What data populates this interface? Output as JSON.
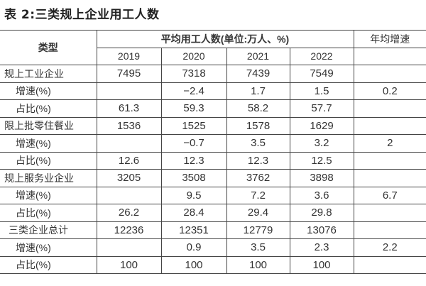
{
  "title": "表 2:三类规上企业用工人数",
  "header": {
    "type": "类型",
    "group": "平均用工人数(单位:万人、%)",
    "avg_growth": "年均增速",
    "years": [
      "2019",
      "2020",
      "2021",
      "2022"
    ]
  },
  "rows": [
    {
      "label": "规上工业企业",
      "style": "name",
      "values": [
        "7495",
        "7318",
        "7439",
        "7549",
        ""
      ]
    },
    {
      "label": "增速(%)",
      "style": "sub",
      "values": [
        "",
        "−2.4",
        "1.7",
        "1.5",
        "0.2"
      ]
    },
    {
      "label": "占比(%)",
      "style": "sub",
      "values": [
        "61.3",
        "59.3",
        "58.2",
        "57.7",
        ""
      ]
    },
    {
      "label": "限上批零住餐业",
      "style": "name",
      "values": [
        "1536",
        "1525",
        "1578",
        "1629",
        ""
      ]
    },
    {
      "label": "增速(%)",
      "style": "sub",
      "values": [
        "",
        "−0.7",
        "3.5",
        "3.2",
        "2"
      ]
    },
    {
      "label": "占比(%)",
      "style": "sub",
      "values": [
        "12.6",
        "12.3",
        "12.3",
        "12.5",
        ""
      ]
    },
    {
      "label": "规上服务业企业",
      "style": "name",
      "values": [
        "3205",
        "3508",
        "3762",
        "3898",
        ""
      ]
    },
    {
      "label": "增速(%)",
      "style": "sub",
      "values": [
        "",
        "9.5",
        "7.2",
        "3.6",
        "6.7"
      ]
    },
    {
      "label": "占比(%)",
      "style": "sub",
      "values": [
        "26.2",
        "28.4",
        "29.4",
        "29.8",
        ""
      ]
    },
    {
      "label": "三类企业总计",
      "style": "name2",
      "values": [
        "12236",
        "12351",
        "12779",
        "13076",
        ""
      ]
    },
    {
      "label": "增速(%)",
      "style": "sub",
      "values": [
        "",
        "0.9",
        "3.5",
        "2.3",
        "2.2"
      ]
    },
    {
      "label": "占比(%)",
      "style": "sub",
      "values": [
        "100",
        "100",
        "100",
        "100",
        ""
      ]
    }
  ]
}
